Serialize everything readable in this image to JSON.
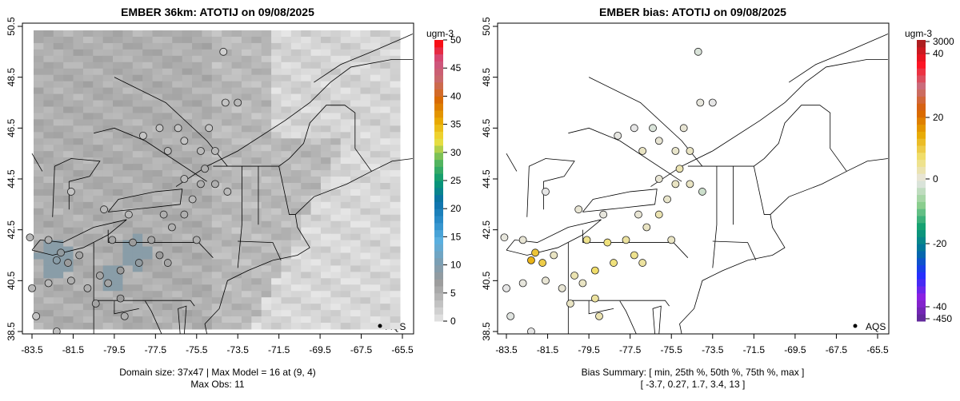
{
  "chart_data": [
    {
      "type": "map",
      "title": "EMBER 36km: ATOTIJ on 09/08/2025",
      "xticks": [
        "-83.5",
        "-81.5",
        "-79.5",
        "-77.5",
        "-75.5",
        "-73.5",
        "-71.5",
        "-69.5",
        "-67.5",
        "-65.5"
      ],
      "yticks": [
        "38.5",
        "40.5",
        "42.5",
        "44.5",
        "46.5",
        "48.5",
        "50.5"
      ],
      "xlim": [
        -84,
        -65
      ],
      "ylim": [
        38.4,
        50.6
      ],
      "colorbar": {
        "unit": "ugm-3",
        "ticks": [
          "0",
          "5",
          "10",
          "15",
          "20",
          "25",
          "30",
          "35",
          "40",
          "45",
          "50"
        ],
        "range": [
          0,
          50
        ]
      },
      "legend": "AQS",
      "footer": [
        "Domain size: 37x47 | Max Model = 16 at (9, 4)",
        "Max Obs: 11"
      ]
    },
    {
      "type": "map",
      "title": "EMBER bias: ATOTIJ on 09/08/2025",
      "xticks": [
        "-83.5",
        "-81.5",
        "-79.5",
        "-77.5",
        "-75.5",
        "-73.5",
        "-71.5",
        "-69.5",
        "-67.5",
        "-65.5"
      ],
      "yticks": [
        "38.5",
        "40.5",
        "42.5",
        "44.5",
        "46.5",
        "48.5",
        "50.5"
      ],
      "xlim": [
        -84,
        -65
      ],
      "ylim": [
        38.4,
        50.6
      ],
      "colorbar": {
        "unit": "ugm-3",
        "ticks": [
          "3000",
          "40",
          "20",
          "0",
          "-20",
          "-40",
          "-450"
        ]
      },
      "legend": "AQS",
      "footer": [
        "Bias Summary: [ min, 25th %, 50th %, 75th %, max ]",
        "[ -3.7,   0.27,   1.7,   3.4,   13 ]"
      ]
    }
  ],
  "stations": [
    [
      -83.6,
      42.2,
      4,
      0.5
    ],
    [
      -82.7,
      42.1,
      5,
      1
    ],
    [
      -82.3,
      41.3,
      9,
      12
    ],
    [
      -82.1,
      41.6,
      8,
      10
    ],
    [
      -81.75,
      41.2,
      7,
      9
    ],
    [
      -81.2,
      41.5,
      6,
      2
    ],
    [
      -81.6,
      44.0,
      3,
      0
    ],
    [
      -80.0,
      43.3,
      4,
      1
    ],
    [
      -78.8,
      43.1,
      4,
      0.5
    ],
    [
      -77.1,
      43.1,
      5,
      1
    ],
    [
      -75.7,
      43.7,
      4,
      1.5
    ],
    [
      -75.3,
      44.3,
      5,
      2
    ],
    [
      -76.1,
      44.5,
      4,
      1
    ],
    [
      -75.1,
      44.9,
      5,
      3
    ],
    [
      -74.9,
      46.5,
      3,
      1
    ],
    [
      -74.1,
      47.5,
      3,
      0.5
    ],
    [
      -73.5,
      47.5,
      4,
      0
    ],
    [
      -74.2,
      49.5,
      2,
      -1
    ],
    [
      -76.9,
      45.6,
      4,
      2
    ],
    [
      -78.1,
      46.2,
      3,
      0.3
    ],
    [
      -79.6,
      42.1,
      6,
      5
    ],
    [
      -78.6,
      42.0,
      7,
      6
    ],
    [
      -77.7,
      42.1,
      6,
      4
    ],
    [
      -77.3,
      41.5,
      7,
      5
    ],
    [
      -78.3,
      41.2,
      8,
      6
    ],
    [
      -79.2,
      40.9,
      7,
      7
    ],
    [
      -80.2,
      40.7,
      6,
      3
    ],
    [
      -80.8,
      40.2,
      5,
      1
    ],
    [
      -80.4,
      39.6,
      6,
      2
    ],
    [
      -79.2,
      39.8,
      7,
      4
    ],
    [
      -79.0,
      39.1,
      5,
      3
    ],
    [
      -79.8,
      40.4,
      6,
      2
    ],
    [
      -81.6,
      40.5,
      5,
      1
    ],
    [
      -82.7,
      40.4,
      4,
      0.5
    ],
    [
      -83.5,
      40.2,
      4,
      0
    ],
    [
      -83.3,
      39.1,
      3,
      -0.5
    ],
    [
      -82.3,
      38.5,
      3,
      0
    ],
    [
      -76.7,
      42.6,
      5,
      2
    ],
    [
      -76.1,
      43.1,
      5,
      3
    ],
    [
      -75.5,
      42.1,
      5,
      2
    ],
    [
      -76.9,
      41.2,
      6,
      4
    ],
    [
      -76.1,
      46.0,
      3,
      1
    ],
    [
      -74.6,
      45.6,
      4,
      2
    ],
    [
      -75.3,
      45.6,
      4,
      1.5
    ],
    [
      -76.4,
      46.5,
      3,
      -1
    ],
    [
      -77.3,
      46.5,
      3,
      0
    ],
    [
      -74.6,
      44.3,
      5,
      2
    ],
    [
      -74.0,
      44.0,
      4,
      -2
    ]
  ],
  "colors": {
    "conc": [
      "#e6e6e6",
      "#bdbdbd",
      "#9a9a9a",
      "#7a9fb5",
      "#5bb0e0",
      "#2a8cc8",
      "#0a70a8",
      "#089a70",
      "#5cb85c",
      "#f0e040",
      "#e8a800",
      "#d86a00",
      "#c86a6a",
      "#d05080",
      "#ff0000"
    ],
    "bias": [
      "#5a2a90",
      "#9020e0",
      "#2030ff",
      "#0070a0",
      "#10a070",
      "#90d090",
      "#e6e6e6",
      "#f0e070",
      "#e8a800",
      "#d86000",
      "#c87080",
      "#ff1020",
      "#a02020"
    ]
  }
}
